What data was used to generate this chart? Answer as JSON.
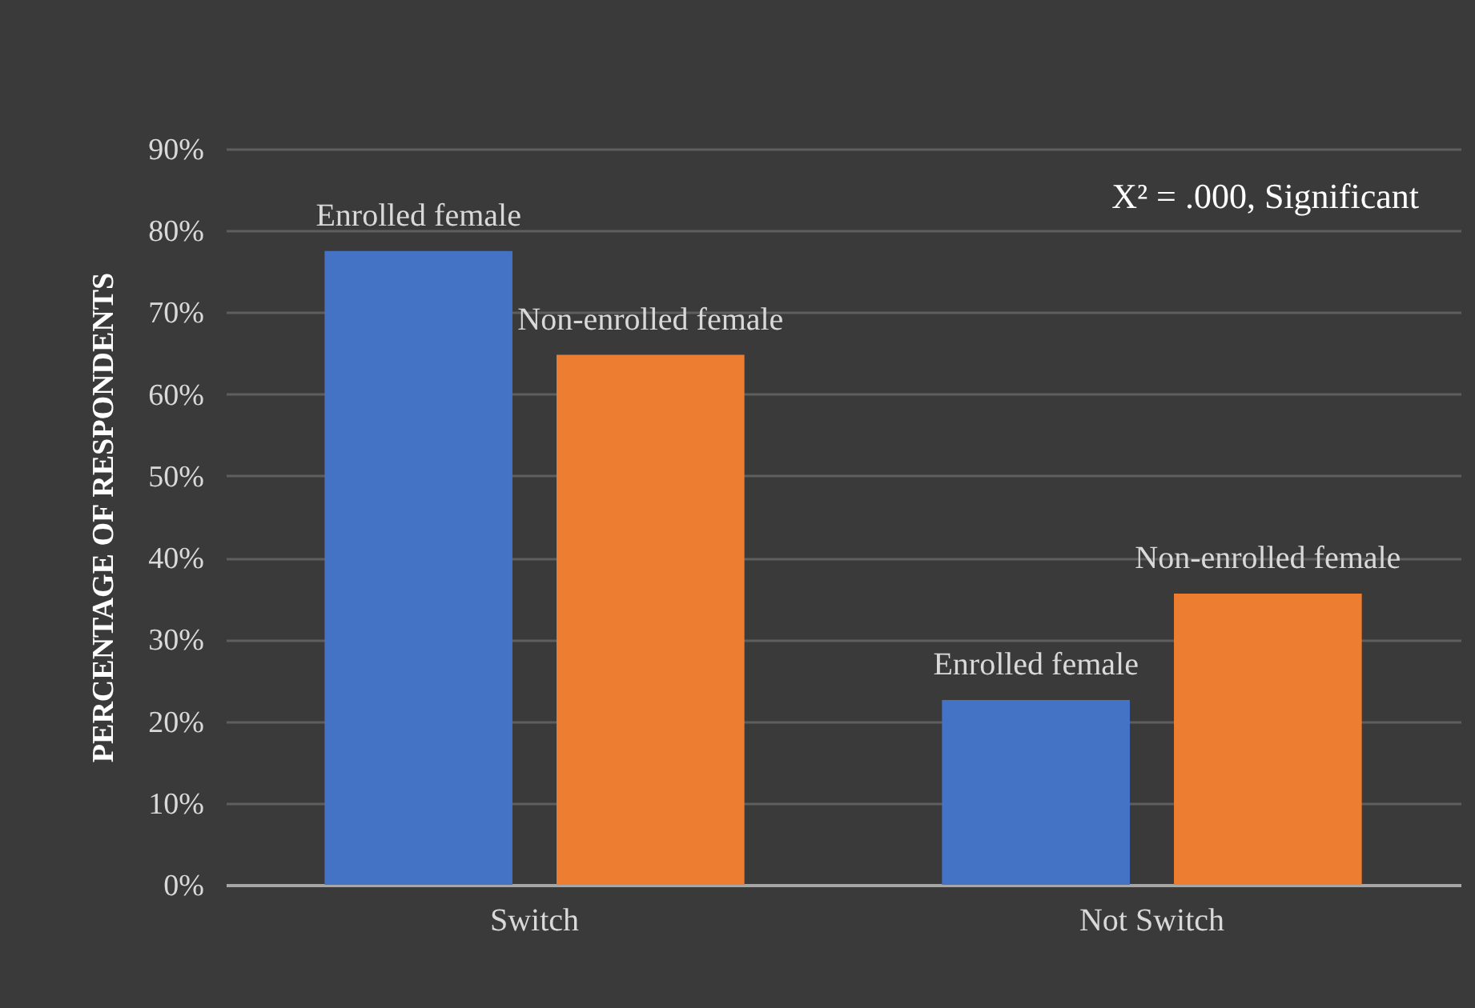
{
  "chart_data": {
    "type": "bar",
    "ylabel": "PERCENTAGE OF RESPONDENTS",
    "annotations": [
      "X² = .000,  Significant"
    ],
    "categories": [
      "Switch",
      "Not Switch"
    ],
    "series": [
      {
        "name": "Enrolled female",
        "color": "#4472c4",
        "values": [
          77.5,
          22.6
        ]
      },
      {
        "name": "Non-enrolled female",
        "color": "#ed7d31",
        "values": [
          64.8,
          35.6
        ]
      }
    ],
    "ylim": [
      0,
      90
    ],
    "yticks": [
      {
        "value": 0,
        "label": "0%"
      },
      {
        "value": 10,
        "label": "10%"
      },
      {
        "value": 20,
        "label": "20%"
      },
      {
        "value": 30,
        "label": "30%"
      },
      {
        "value": 40,
        "label": "40%"
      },
      {
        "value": 50,
        "label": "50%"
      },
      {
        "value": 60,
        "label": "60%"
      },
      {
        "value": 70,
        "label": "70%"
      },
      {
        "value": 80,
        "label": "80%"
      },
      {
        "value": 90,
        "label": "90%"
      }
    ],
    "grid": "y",
    "legend": false
  }
}
